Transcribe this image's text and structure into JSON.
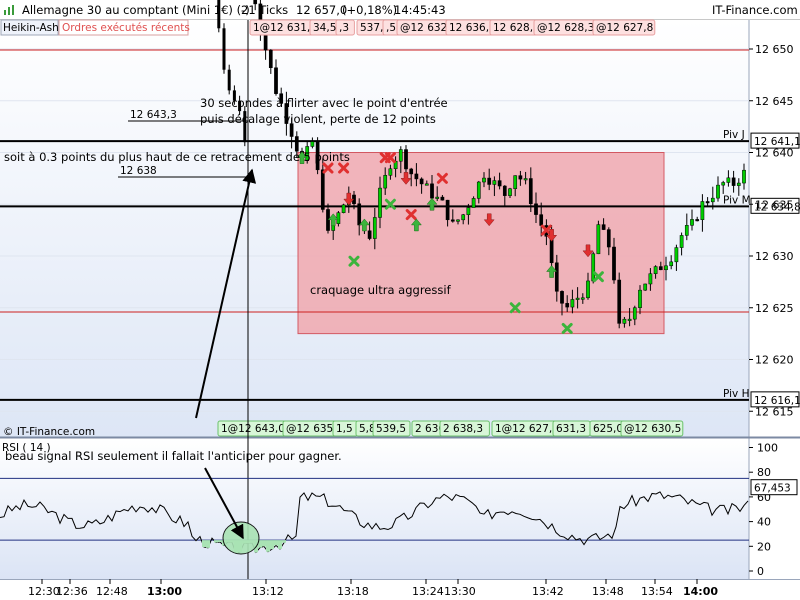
{
  "window": {
    "title": "Allemagne 30 au comptant (Mini 1€) (-)",
    "ticks": "21 Ticks",
    "last": "12 657,0",
    "change": "(+0,18%)",
    "time": "14:45:43",
    "brand": "IT-Finance.com"
  },
  "toolbar": {
    "chart_type": "Heikin-Ashi",
    "orders_label": "Ordres exécutés récents"
  },
  "colors": {
    "bull": "#00cc00",
    "bear": "#000000",
    "zone_fill": "#f1a9b0",
    "zone_border": "#d0404a",
    "sell_order_bg": "#fde0e0",
    "buy_order_bg": "#d8f6d8",
    "red_line": "#cc2020",
    "up_arrow": "#3cb43c",
    "down_arrow": "#e03030",
    "rsi_fill": "#a9e3b4"
  },
  "sell_orders": [
    "1@12 631,3",
    "34,5",
    ",3",
    "537,8",
    ",5",
    "@12 632,5",
    "12 636,0",
    "12 628,0",
    "@12 628,3",
    "@12 627,8"
  ],
  "buy_orders": [
    "1@12 643,0",
    "@12 635,5",
    "1,5",
    "5,8",
    "539,5",
    "2 636,0",
    "2 638,3",
    "1@12 627,5",
    "631,3",
    "625,0",
    "@12 630,5"
  ],
  "price_scale": [
    "12 650",
    "12 645",
    "12 640",
    "12 635",
    "12 630",
    "12 625",
    "12 620",
    "12 615"
  ],
  "pivots": [
    {
      "name": "Piv J",
      "value": "12 641,1",
      "price": 12641.1
    },
    {
      "name": "Piv M",
      "value": "12 634,8",
      "price": 12634.8
    },
    {
      "name": "Piv H",
      "value": "12 616,1",
      "price": 12616.1
    }
  ],
  "annotations": {
    "note1_line1": "30 secondes à flirter avec le point d'entrée",
    "note1_line2": "puis décalage violent, perte de 12 points",
    "note2": "soit à 0.3 points du plus haut de ce retracement de 5 points",
    "level_a": "12 643,3",
    "level_b": "12 638",
    "zone_label": "craquage ultra aggressif",
    "rsi_note": "beau signal RSI seulement il fallait l'anticiper pour gagner.",
    "copyright": "© IT-Finance.com"
  },
  "rsi": {
    "title": "RSI ( 14 )",
    "value": "67,453",
    "value_num": 67.453,
    "scale": [
      "100",
      "80",
      "60",
      "40",
      "20",
      "0"
    ],
    "levels": [
      75,
      25
    ]
  },
  "x_labels": [
    "12:30",
    "12:36",
    "12:48",
    "13:00",
    "13:12",
    "13:18",
    "13:24",
    "13:30",
    "13:42",
    "13:48",
    "13:54",
    "14:00"
  ],
  "chart_data": {
    "type": "candlestick",
    "title": "Allemagne 30 au comptant (Mini 1€) (-)",
    "chart_style": "Heikin-Ashi",
    "y_range": [
      12612,
      12656
    ],
    "close_path": [
      [
        0,
        12660
      ],
      [
        3,
        12652
      ],
      [
        6,
        12646
      ],
      [
        9,
        12642
      ],
      [
        11,
        12639
      ],
      [
        13,
        12641
      ],
      [
        14,
        12638
      ],
      [
        16,
        12632
      ],
      [
        18,
        12634
      ],
      [
        20,
        12636
      ],
      [
        22,
        12633
      ],
      [
        24,
        12632
      ],
      [
        26,
        12636
      ],
      [
        28,
        12639
      ],
      [
        30,
        12640
      ],
      [
        32,
        12638
      ],
      [
        34,
        12637
      ],
      [
        36,
        12636
      ],
      [
        38,
        12635
      ],
      [
        40,
        12633
      ],
      [
        42,
        12634
      ],
      [
        44,
        12636
      ],
      [
        46,
        12638
      ],
      [
        48,
        12637
      ],
      [
        50,
        12636
      ],
      [
        52,
        12638
      ],
      [
        54,
        12637
      ],
      [
        56,
        12634
      ],
      [
        58,
        12632
      ],
      [
        60,
        12626
      ],
      [
        62,
        12625
      ],
      [
        64,
        12626
      ],
      [
        66,
        12627
      ],
      [
        67,
        12630
      ],
      [
        68,
        12633
      ],
      [
        70,
        12631
      ],
      [
        71,
        12628
      ],
      [
        72,
        12623
      ],
      [
        74,
        12624
      ],
      [
        76,
        12627
      ],
      [
        78,
        12628
      ],
      [
        80,
        12629
      ],
      [
        82,
        12630
      ],
      [
        84,
        12632
      ],
      [
        86,
        12633
      ],
      [
        88,
        12635
      ],
      [
        90,
        12636
      ],
      [
        92,
        12637
      ],
      [
        94,
        12637
      ],
      [
        96,
        12638
      ]
    ],
    "markers": [
      {
        "x": 10,
        "p": 12639.5,
        "kind": "buy-arrow"
      },
      {
        "x": 15,
        "p": 12638.5,
        "kind": "sell-x"
      },
      {
        "x": 16,
        "p": 12633.5,
        "kind": "buy-arrow"
      },
      {
        "x": 18,
        "p": 12638.5,
        "kind": "sell-x"
      },
      {
        "x": 19,
        "p": 12635.5,
        "kind": "sell-arrow"
      },
      {
        "x": 20,
        "p": 12629.5,
        "kind": "buy-x"
      },
      {
        "x": 22,
        "p": 12633.0,
        "kind": "buy-arrow"
      },
      {
        "x": 26,
        "p": 12639.5,
        "kind": "sell-x"
      },
      {
        "x": 27,
        "p": 12639.5,
        "kind": "sell-x"
      },
      {
        "x": 27,
        "p": 12635.0,
        "kind": "buy-x"
      },
      {
        "x": 30,
        "p": 12637.5,
        "kind": "sell-arrow"
      },
      {
        "x": 31,
        "p": 12634.0,
        "kind": "sell-x"
      },
      {
        "x": 32,
        "p": 12633.0,
        "kind": "buy-arrow"
      },
      {
        "x": 35,
        "p": 12635.0,
        "kind": "buy-arrow"
      },
      {
        "x": 37,
        "p": 12637.5,
        "kind": "sell-x"
      },
      {
        "x": 46,
        "p": 12633.5,
        "kind": "sell-arrow"
      },
      {
        "x": 51,
        "p": 12625.0,
        "kind": "buy-x"
      },
      {
        "x": 57,
        "p": 12632.5,
        "kind": "sell-x"
      },
      {
        "x": 58,
        "p": 12632.0,
        "kind": "sell-arrow"
      },
      {
        "x": 58,
        "p": 12628.5,
        "kind": "buy-arrow"
      },
      {
        "x": 61,
        "p": 12623.0,
        "kind": "buy-x"
      },
      {
        "x": 65,
        "p": 12630.5,
        "kind": "sell-arrow"
      },
      {
        "x": 67,
        "p": 12628.0,
        "kind": "buy-x"
      }
    ],
    "zone": {
      "p_top": 12640.0,
      "p_bottom": 12622.5
    }
  }
}
